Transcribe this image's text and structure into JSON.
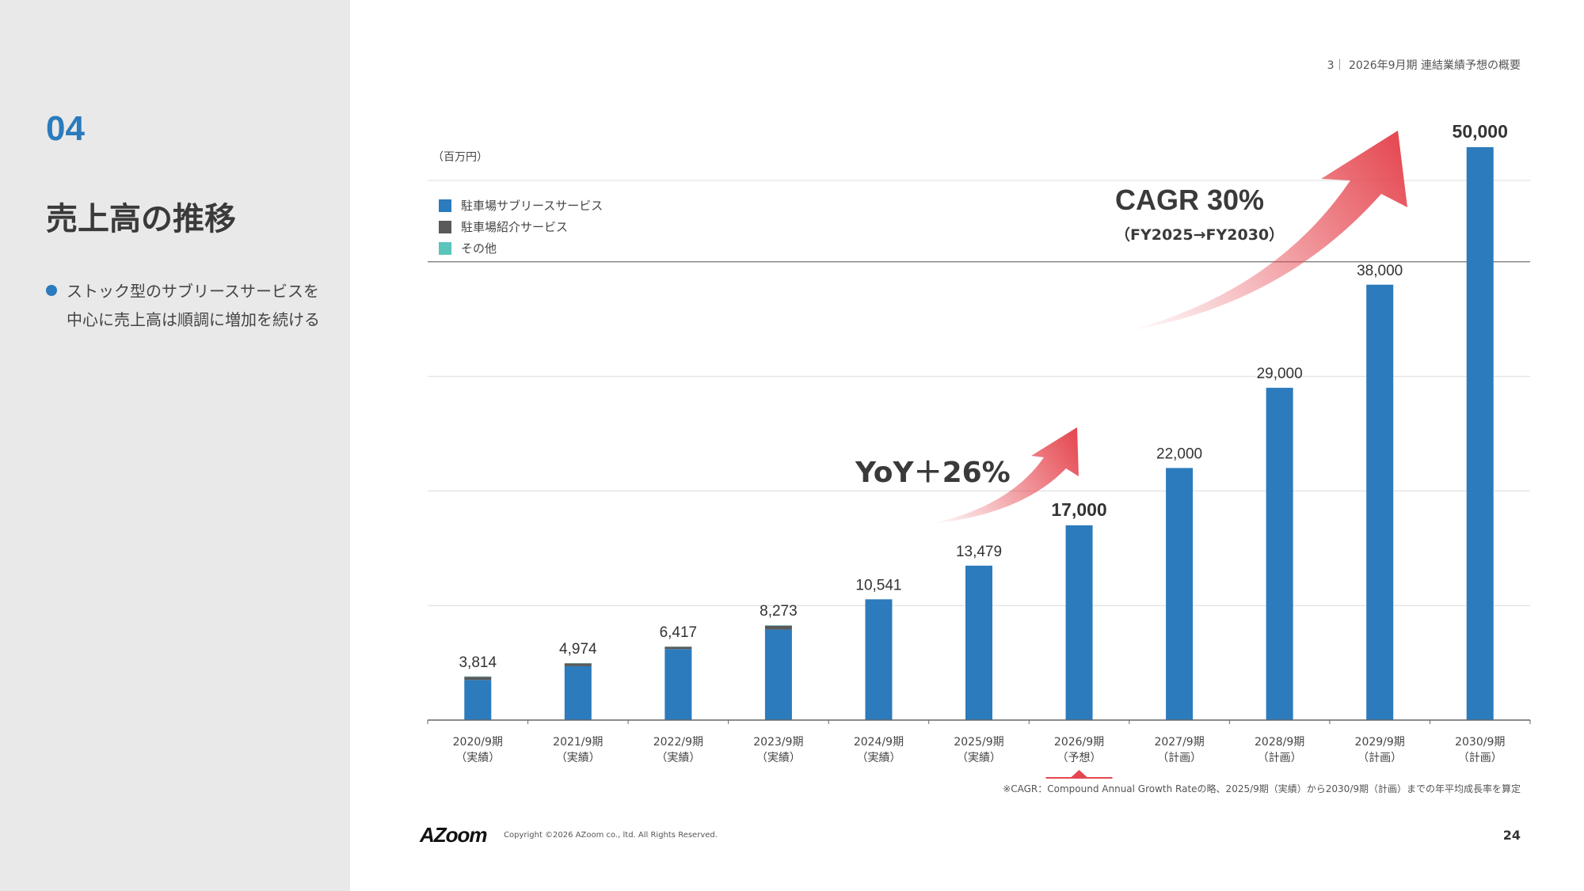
{
  "sidebar": {
    "section_number": "04",
    "title": "売上高の推移",
    "bullet": "ストック型のサブリースサービスを中心に売上高は順調に増加を続ける"
  },
  "header": {
    "text": "3｜ 2026年9月期 連結業績予想の概要"
  },
  "chart_data": {
    "type": "bar",
    "unit_label": "（百万円）",
    "categories": [
      [
        "2020/9期",
        "（実績）"
      ],
      [
        "2021/9期",
        "（実績）"
      ],
      [
        "2022/9期",
        "（実績）"
      ],
      [
        "2023/9期",
        "（実績）"
      ],
      [
        "2024/9期",
        "（実績）"
      ],
      [
        "2025/9期",
        "（実績）"
      ],
      [
        "2026/9期",
        "（予想）"
      ],
      [
        "2027/9期",
        "（計画）"
      ],
      [
        "2028/9期",
        "（計画）"
      ],
      [
        "2029/9期",
        "（計画）"
      ],
      [
        "2030/9期",
        "（計画）"
      ]
    ],
    "totals": [
      3814,
      4974,
      6417,
      8273,
      10541,
      13479,
      17000,
      22000,
      29000,
      38000,
      50000
    ],
    "total_labels": [
      "3,814",
      "4,974",
      "6,417",
      "8,273",
      "10,541",
      "13,479",
      "17,000",
      "22,000",
      "29,000",
      "38,000",
      "50,000"
    ],
    "bold_labels": [
      6,
      10
    ],
    "series": [
      {
        "name": "駐車場サブリースサービス",
        "color": "#2b7bbd",
        "values": [
          3500,
          4700,
          6200,
          7900,
          10541,
          13479,
          17000,
          22000,
          29000,
          38000,
          50000
        ]
      },
      {
        "name": "駐車場紹介サービス",
        "color": "#5a5a5a",
        "values": [
          280,
          250,
          200,
          340,
          0,
          0,
          0,
          0,
          0,
          0,
          0
        ]
      },
      {
        "name": "その他",
        "color": "#5bc4bb",
        "values": [
          34,
          24,
          17,
          33,
          0,
          0,
          0,
          0,
          0,
          0,
          0
        ]
      }
    ],
    "ylim": [
      0,
      50000
    ],
    "grid": true,
    "highlight_category": 6
  },
  "annotations": {
    "cagr_title": "CAGR 30%",
    "cagr_sub": "（FY2025→FY2030）",
    "yoy": "YoY＋26%",
    "arrow_color": "#e5464f"
  },
  "footnote": "※CAGR：Compound Annual Growth Rateの略、2025/9期（実績）から2030/9期（計画）までの年平均成長率を算定",
  "footer": {
    "logo": "AZoom",
    "copyright": "Copyright ©2026 AZoom co., ltd. All Rights Reserved.",
    "page_number": "24"
  }
}
